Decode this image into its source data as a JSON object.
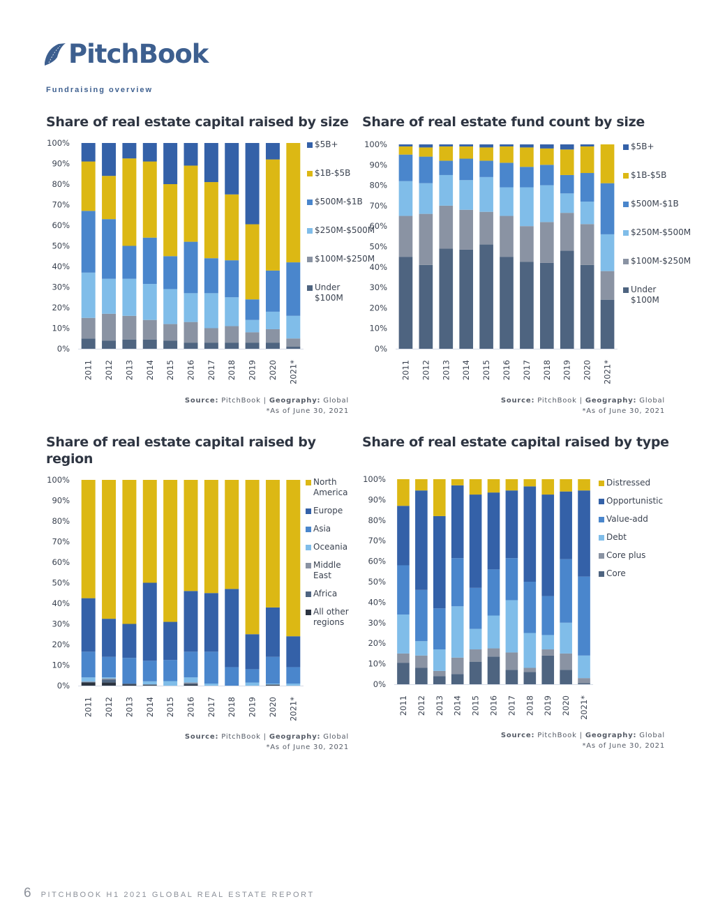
{
  "header": {
    "logo_text": "PitchBook",
    "section": "Fundraising overview"
  },
  "footer": {
    "page_number": "6",
    "report_title": "PITCHBOOK H1 2021 GLOBAL REAL ESTATE REPORT"
  },
  "colors": {
    "dark_blue": "#3461a8",
    "yellow": "#dcb814",
    "medium_blue": "#4a86cc",
    "light_blue": "#80bde9",
    "grey": "#8a93a3",
    "slate": "#4e6480",
    "charcoal": "#2c3440"
  },
  "chart_data": [
    {
      "type": "bar",
      "stacked": true,
      "title": "Share of real estate capital raised by size",
      "source_label": "Source:",
      "source": "PitchBook",
      "geo_label": "Geography:",
      "geography": "Global",
      "note": "*As of June 30, 2021",
      "categories": [
        "2011",
        "2012",
        "2013",
        "2014",
        "2015",
        "2016",
        "2017",
        "2018",
        "2019",
        "2020",
        "2021*"
      ],
      "yticks": [
        "0%",
        "10%",
        "20%",
        "30%",
        "40%",
        "50%",
        "60%",
        "70%",
        "80%",
        "90%",
        "100%"
      ],
      "ylim": [
        0,
        100
      ],
      "legend_position": "right",
      "series": [
        {
          "name": "$5B+",
          "color": "#3461a8",
          "values": [
            9,
            16,
            7.5,
            9,
            20,
            11,
            19,
            25,
            39.5,
            8,
            0
          ]
        },
        {
          "name": "$1B-$5B",
          "color": "#dcb814",
          "values": [
            24,
            21,
            42.5,
            37,
            35,
            37,
            37,
            32,
            36.5,
            54,
            58
          ]
        },
        {
          "name": "$500M-$1B",
          "color": "#4a86cc",
          "values": [
            30,
            29,
            16,
            22.5,
            16,
            25,
            17,
            18,
            10,
            20,
            26
          ]
        },
        {
          "name": "$250M-$500M",
          "color": "#80bde9",
          "values": [
            22,
            17,
            18,
            17.5,
            17,
            14,
            17,
            14,
            6,
            8.5,
            11
          ]
        },
        {
          "name": "$100M-$250M",
          "color": "#8a93a3",
          "values": [
            10,
            13,
            11.5,
            9.5,
            8,
            10,
            7,
            8,
            5,
            6.5,
            4
          ]
        },
        {
          "name": "Under $100M",
          "color": "#4e6480",
          "values": [
            5,
            4,
            4.5,
            4.5,
            4,
            3,
            3,
            3,
            3,
            3,
            1
          ]
        }
      ]
    },
    {
      "type": "bar",
      "stacked": true,
      "title": "Share of real estate fund count by size",
      "source_label": "Source:",
      "source": "PitchBook",
      "geo_label": "Geography:",
      "geography": "Global",
      "note": "*As of June 30, 2021",
      "categories": [
        "2011",
        "2012",
        "2013",
        "2014",
        "2015",
        "2016",
        "2017",
        "2018",
        "2019",
        "2020",
        "2021*"
      ],
      "yticks": [
        "0%",
        "10%",
        "20%",
        "30%",
        "40%",
        "50%",
        "60%",
        "70%",
        "80%",
        "90%",
        "100%"
      ],
      "ylim": [
        0,
        100
      ],
      "legend_position": "right",
      "series": [
        {
          "name": "$5B+",
          "color": "#3461a8",
          "values": [
            1,
            1.5,
            1,
            1,
            1.5,
            1,
            1.5,
            2,
            2.5,
            1,
            0
          ]
        },
        {
          "name": "$1B-$5B",
          "color": "#dcb814",
          "values": [
            4,
            4.5,
            7,
            6,
            6.5,
            8,
            9.5,
            8,
            12.5,
            13,
            19
          ]
        },
        {
          "name": "$500M-$1B",
          "color": "#4a86cc",
          "values": [
            13,
            13,
            7,
            10.5,
            8,
            12,
            10,
            10,
            9,
            14,
            25
          ]
        },
        {
          "name": "$250M-$500M",
          "color": "#80bde9",
          "values": [
            17,
            15,
            15,
            14.5,
            17,
            14,
            19,
            18,
            9.5,
            11,
            18
          ]
        },
        {
          "name": "$100M-$250M",
          "color": "#8a93a3",
          "values": [
            20,
            25,
            21,
            19.5,
            16,
            20,
            17.5,
            20,
            18.5,
            20,
            14
          ]
        },
        {
          "name": "Under $100M",
          "color": "#4e6480",
          "values": [
            45,
            41,
            49,
            48.5,
            51,
            45,
            42.5,
            42,
            48,
            41,
            24
          ]
        }
      ]
    },
    {
      "type": "bar",
      "stacked": true,
      "title": "Share of real estate capital raised by region",
      "source_label": "Source:",
      "source": "PitchBook",
      "geo_label": "Geography:",
      "geography": "Global",
      "note": "*As of June 30, 2021",
      "categories": [
        "2011",
        "2012",
        "2013",
        "2014",
        "2015",
        "2016",
        "2017",
        "2018",
        "2019",
        "2020",
        "2021*"
      ],
      "yticks": [
        "0%",
        "10%",
        "20%",
        "30%",
        "40%",
        "50%",
        "60%",
        "70%",
        "80%",
        "90%",
        "100%"
      ],
      "ylim": [
        0,
        100
      ],
      "legend_position": "right",
      "series": [
        {
          "name": "North America",
          "color": "#dcb814",
          "values": [
            57.5,
            67.5,
            70,
            50,
            69,
            54,
            55,
            53,
            75,
            62,
            76
          ]
        },
        {
          "name": "Europe",
          "color": "#3461a8",
          "values": [
            26,
            18.5,
            16.5,
            37.9,
            18.5,
            29.5,
            28.5,
            38,
            17,
            24,
            15
          ]
        },
        {
          "name": "Asia",
          "color": "#4a86cc",
          "values": [
            12.5,
            10,
            12.5,
            10,
            10.3,
            12.5,
            15.5,
            9,
            6.5,
            13,
            8
          ]
        },
        {
          "name": "Oceania",
          "color": "#80bde9",
          "values": [
            2,
            0.5,
            0,
            1.5,
            2.2,
            2.5,
            1,
            0,
            1.5,
            0.4,
            1
          ]
        },
        {
          "name": "Middle East",
          "color": "#8a93a3",
          "values": [
            0.2,
            0.5,
            0,
            0,
            0,
            0.5,
            0,
            0,
            0,
            0,
            0
          ]
        },
        {
          "name": "Africa",
          "color": "#4e6480",
          "values": [
            0.3,
            1.5,
            0.5,
            0.3,
            0,
            0.5,
            0,
            0,
            0,
            0.3,
            0
          ]
        },
        {
          "name": "All other regions",
          "color": "#2c3440",
          "values": [
            1.5,
            1.5,
            0.5,
            0.3,
            0,
            0.5,
            0,
            0,
            0,
            0.3,
            0
          ]
        }
      ]
    },
    {
      "type": "bar",
      "stacked": true,
      "title": "Share of real estate capital raised by type",
      "source_label": "Source:",
      "source": "PitchBook",
      "geo_label": "Geography:",
      "geography": "Global",
      "note": "*As of June 30, 2021",
      "categories": [
        "2011",
        "2012",
        "2013",
        "2014",
        "2015",
        "2016",
        "2017",
        "2018",
        "2019",
        "2020",
        "2021*"
      ],
      "yticks": [
        "0%",
        "10%",
        "20%",
        "30%",
        "40%",
        "50%",
        "60%",
        "70%",
        "80%",
        "90%",
        "100%"
      ],
      "ylim": [
        0,
        100
      ],
      "legend_position": "right",
      "series": [
        {
          "name": "Distressed",
          "color": "#dcb814",
          "values": [
            13,
            5.5,
            18,
            3,
            7.5,
            6.5,
            5.5,
            3.5,
            7.5,
            6,
            5.5
          ]
        },
        {
          "name": "Opportunistic",
          "color": "#3461a8",
          "values": [
            29,
            48.5,
            45,
            35.5,
            45.5,
            37.5,
            33,
            46.5,
            49.5,
            33,
            42
          ]
        },
        {
          "name": "Value-add",
          "color": "#4a86cc",
          "values": [
            24,
            25,
            20,
            23.5,
            20,
            22.5,
            20.5,
            25,
            19,
            31,
            38.5
          ]
        },
        {
          "name": "Debt",
          "color": "#80bde9",
          "values": [
            19,
            7,
            10.5,
            25,
            10,
            16,
            25.5,
            17,
            7,
            15,
            11
          ]
        },
        {
          "name": "Core plus",
          "color": "#8a93a3",
          "values": [
            4.5,
            6,
            2.5,
            8,
            6,
            4,
            8.5,
            2,
            3,
            8,
            2.5
          ]
        },
        {
          "name": "Core",
          "color": "#4e6480",
          "values": [
            10.5,
            8,
            4,
            5,
            11,
            13.5,
            7,
            6,
            14,
            7,
            0.5
          ]
        }
      ]
    }
  ]
}
